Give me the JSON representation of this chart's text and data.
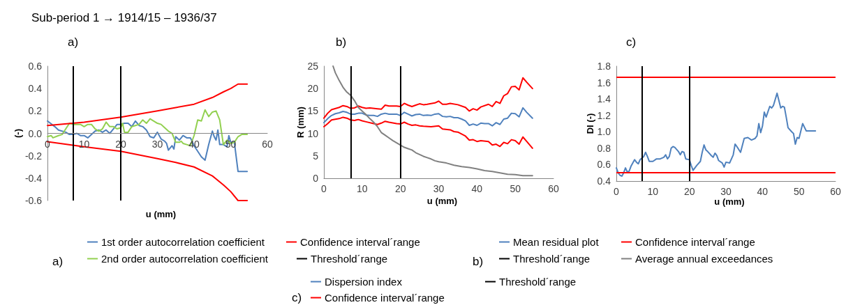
{
  "chart_data": [
    {
      "type": "line",
      "title": "Sub-period 1 → 1914/15 – 1936/37",
      "subtitle": "a)",
      "xlabel": "u (mm)",
      "ylabel": "(-)",
      "xlim": [
        0,
        60
      ],
      "xticks": [
        0,
        10,
        20,
        30,
        40,
        50,
        60
      ],
      "ylim": [
        -0.6,
        0.6
      ],
      "yticks": [
        -0.6,
        -0.4,
        -0.2,
        {
          "value": 0,
          "label": "0.0"
        },
        0.2,
        0.4,
        0.6
      ],
      "grid": false,
      "legend": "bottom",
      "marker": "none",
      "line_style": "solid",
      "series": [
        {
          "name": "1st order autocorrelation coefficient",
          "color": "#4f81bd",
          "x": [
            0,
            2,
            3,
            5,
            6,
            7,
            8,
            9,
            10,
            11,
            13,
            14,
            15,
            16,
            17,
            18,
            19,
            20,
            21,
            22,
            23,
            24,
            25,
            26,
            27,
            28,
            29,
            30,
            31,
            32,
            32.5,
            33,
            34,
            34.5,
            35,
            36,
            37,
            38,
            39,
            40,
            41,
            42,
            43,
            44,
            45,
            45.5,
            46,
            46.5,
            47,
            48,
            49,
            49.5,
            50,
            51,
            52,
            54.5
          ],
          "values": [
            0.11,
            0.06,
            0.03,
            0.01,
            -0.01,
            -0.01,
            0.0,
            -0.02,
            -0.02,
            -0.04,
            0.02,
            0.03,
            0.01,
            0.03,
            0.0,
            0.04,
            0.08,
            0.08,
            0.09,
            0.09,
            0.06,
            0.11,
            0.07,
            0.06,
            0.03,
            -0.03,
            -0.04,
            0.01,
            -0.05,
            -0.07,
            -0.09,
            -0.15,
            -0.11,
            -0.14,
            -0.03,
            -0.06,
            -0.02,
            -0.04,
            -0.04,
            -0.11,
            -0.16,
            -0.21,
            -0.24,
            -0.1,
            0.02,
            -0.03,
            -0.06,
            0.03,
            -0.1,
            -0.1,
            -0.12,
            -0.02,
            -0.08,
            -0.08,
            -0.34,
            -0.34
          ]
        },
        {
          "name": "2nd order autocorrelation coefficient",
          "color": "#92d050",
          "x": [
            0,
            1,
            1.5,
            3,
            4,
            5,
            6,
            7,
            9,
            10,
            11,
            12,
            13,
            14,
            15,
            16,
            17,
            18,
            19,
            20,
            20.5,
            21,
            22,
            23,
            24,
            25,
            26,
            27,
            28,
            29,
            30,
            31,
            32,
            33,
            34,
            35,
            36,
            36.5,
            37,
            38,
            39,
            40,
            41,
            42,
            43,
            44,
            45,
            46,
            47,
            48,
            49,
            50,
            51,
            52,
            53,
            54.5
          ],
          "values": [
            -0.03,
            -0.02,
            -0.04,
            -0.02,
            -0.01,
            0.04,
            0.09,
            0.08,
            0.08,
            0.06,
            0.08,
            0.08,
            0.04,
            0.02,
            0.04,
            0.1,
            0.06,
            0.06,
            0.04,
            0.05,
            0.09,
            0.01,
            0.01,
            0.06,
            0.07,
            0.08,
            0.12,
            0.09,
            0.13,
            0.11,
            0.09,
            0.08,
            0.05,
            0.02,
            0.0,
            -0.08,
            -0.08,
            -0.07,
            -0.09,
            -0.1,
            -0.11,
            -0.02,
            0.12,
            0.11,
            0.21,
            0.15,
            0.19,
            0.2,
            0.12,
            -0.1,
            -0.06,
            -0.09,
            -0.08,
            -0.03,
            -0.01,
            -0.01
          ]
        },
        {
          "name": "Confidence interval´range",
          "color": "#ff0000",
          "x": [
            0,
            10,
            20,
            30,
            35,
            40,
            45,
            48,
            50,
            52,
            54.5
          ],
          "values": [
            0.07,
            0.1,
            0.145,
            0.2,
            0.23,
            0.26,
            0.32,
            0.37,
            0.4,
            0.44,
            0.44
          ]
        },
        {
          "color": "#ff0000",
          "x": [
            0,
            10,
            20,
            30,
            35,
            40,
            45,
            48,
            50,
            52,
            54.5
          ],
          "values": [
            -0.075,
            -0.12,
            -0.16,
            -0.225,
            -0.26,
            -0.3,
            -0.38,
            -0.46,
            -0.52,
            -0.6,
            -0.6
          ]
        }
      ],
      "ref_lines": [
        {
          "axis": "x",
          "value": 7,
          "label": "Threshold´range",
          "color": "#000000"
        },
        {
          "axis": "x",
          "value": 20,
          "color": "#000000"
        }
      ]
    },
    {
      "type": "line",
      "title": "b)",
      "xlabel": "u (mm)",
      "ylabel": "R (mm)",
      "xlim": [
        0,
        60
      ],
      "xticks": [
        0,
        10,
        20,
        30,
        40,
        50,
        60
      ],
      "ylim": [
        0,
        25
      ],
      "yticks": [
        0,
        5,
        10,
        15,
        20,
        25
      ],
      "grid": false,
      "legend": "bottom",
      "marker": "none",
      "line_style": "solid",
      "series": [
        {
          "name": "Mean residual plot",
          "color": "#4f81bd",
          "x": [
            0,
            1,
            2,
            3,
            4,
            5,
            6,
            7,
            8,
            9,
            10,
            11,
            12,
            13,
            14,
            15,
            16,
            17,
            18,
            19,
            20,
            21,
            22,
            23,
            24,
            25,
            26,
            27,
            28,
            29,
            30,
            31,
            32,
            33,
            34,
            35,
            36,
            37,
            38,
            39,
            40,
            41,
            42,
            43,
            44,
            45,
            46,
            47,
            48,
            49,
            50,
            51,
            52,
            53,
            54.5
          ],
          "values": [
            12.4,
            13.3,
            14.0,
            14.4,
            14.6,
            14.9,
            14.7,
            14.3,
            14.3,
            14.5,
            14.5,
            14.1,
            14.0,
            14.0,
            13.8,
            14.3,
            14.5,
            14.3,
            14.3,
            14.3,
            14.0,
            14.7,
            14.3,
            13.9,
            14.2,
            14.3,
            14.0,
            14.1,
            14.0,
            14.3,
            14.4,
            13.8,
            13.7,
            13.8,
            13.5,
            13.5,
            13.2,
            12.8,
            11.8,
            12.1,
            11.8,
            12.3,
            12.2,
            12.2,
            11.7,
            12.4,
            12.0,
            13.2,
            13.4,
            14.5,
            14.4,
            13.7,
            15.7,
            14.7,
            13.4
          ]
        },
        {
          "name": "Confidence interval´range",
          "color": "#ff0000",
          "x": [
            0,
            1,
            2,
            4,
            5,
            6,
            7,
            8,
            9,
            10,
            11,
            12,
            14,
            15,
            16,
            17,
            19,
            20,
            21,
            22,
            23,
            24,
            25,
            26,
            27,
            29,
            30,
            31,
            32,
            33,
            35,
            37,
            38,
            39,
            40,
            41,
            43,
            44,
            45,
            46,
            47,
            48,
            49,
            50,
            51,
            52,
            53,
            54.5
          ],
          "values": [
            13.4,
            14.5,
            15.3,
            15.8,
            16.2,
            16.0,
            15.6,
            15.7,
            16.1,
            15.8,
            15.6,
            15.7,
            15.5,
            15.4,
            16.3,
            16.1,
            16.1,
            16.0,
            16.7,
            16.3,
            16.0,
            16.3,
            16.6,
            16.4,
            16.5,
            16.8,
            17.2,
            16.5,
            16.5,
            16.7,
            16.4,
            15.8,
            15.0,
            15.5,
            15.2,
            15.9,
            16.5,
            16.0,
            17.1,
            16.7,
            18.4,
            18.9,
            20.4,
            20.5,
            19.7,
            22.4,
            21.4,
            20.0
          ]
        },
        {
          "color": "#ff0000",
          "x": [
            0,
            1,
            2,
            4,
            5,
            6,
            7,
            8,
            9,
            10,
            11,
            13,
            14,
            15,
            16,
            17,
            19,
            20,
            21,
            22,
            23,
            24,
            25,
            26,
            28,
            30,
            31,
            33,
            34,
            35,
            37,
            38,
            39,
            40,
            41,
            43,
            44,
            45,
            46,
            47,
            48,
            49,
            50,
            51,
            52,
            53,
            54.5
          ],
          "values": [
            11.5,
            12.2,
            13.0,
            13.3,
            13.6,
            13.4,
            13.0,
            12.9,
            13.1,
            12.8,
            12.6,
            12.2,
            12.0,
            12.3,
            12.7,
            12.5,
            12.2,
            12.1,
            12.5,
            12.1,
            11.8,
            11.9,
            11.7,
            11.6,
            11.5,
            11.7,
            11.0,
            10.8,
            10.4,
            10.3,
            9.4,
            8.5,
            8.6,
            8.2,
            8.4,
            8.2,
            7.4,
            7.6,
            7.1,
            8.0,
            7.7,
            8.6,
            8.4,
            7.6,
            9.2,
            8.2,
            6.7
          ]
        },
        {
          "name": "Average annual exceedances",
          "color": "#808080",
          "x": [
            2.4,
            3,
            4,
            5,
            6,
            7,
            8,
            9,
            10,
            11,
            12,
            13,
            14,
            15,
            16,
            17,
            18,
            19,
            20,
            21,
            22,
            23,
            24,
            25,
            26,
            27,
            28,
            29,
            30,
            32,
            34,
            36,
            38,
            40,
            42,
            44,
            46,
            48,
            50,
            52,
            54.5
          ],
          "values": [
            25,
            23.5,
            21.8,
            20.3,
            19.2,
            18.5,
            17.3,
            15.8,
            15.0,
            14.2,
            13.3,
            12.5,
            11.5,
            10.2,
            9.6,
            9.0,
            8.4,
            7.9,
            7.4,
            6.9,
            6.6,
            6.3,
            5.7,
            5.3,
            4.9,
            4.6,
            4.3,
            3.9,
            3.7,
            3.4,
            2.9,
            2.6,
            2.4,
            2.1,
            1.7,
            1.5,
            1.2,
            0.9,
            0.8,
            0.6,
            0.6
          ]
        }
      ],
      "ref_lines": [
        {
          "axis": "x",
          "value": 7,
          "label": "Threshold´range",
          "color": "#000000"
        },
        {
          "axis": "x",
          "value": 20,
          "color": "#000000"
        }
      ]
    },
    {
      "type": "line",
      "title": "c)",
      "xlabel": "u (mm)",
      "ylabel": "DI (-)",
      "xlim": [
        0,
        60
      ],
      "xticks": [
        0,
        10,
        20,
        30,
        40,
        50,
        60
      ],
      "ylim": [
        0.4,
        1.8
      ],
      "yticks": [
        0.4,
        0.6,
        0.8,
        {
          "value": 1,
          "label": "1.0"
        },
        1.2,
        1.4,
        1.6,
        1.8
      ],
      "grid": false,
      "legend": "bottom",
      "marker": "none",
      "line_style": "solid",
      "series": [
        {
          "name": "Dispersion index",
          "color": "#4f81bd",
          "x": [
            0,
            0.5,
            1,
            1.5,
            2,
            2.5,
            3,
            3.5,
            4,
            5,
            5.5,
            6,
            6.5,
            7,
            7.5,
            8,
            8.5,
            9,
            10,
            11,
            12,
            13,
            13.5,
            14,
            14.5,
            15,
            15.5,
            16,
            17,
            17.5,
            18,
            18.5,
            19,
            20,
            20.5,
            21,
            22,
            23,
            23.5,
            24,
            24.5,
            25,
            26,
            26.5,
            27,
            27.5,
            28,
            29,
            29.5,
            30,
            31,
            32,
            32.5,
            33,
            34,
            35,
            36,
            37,
            38,
            38.5,
            39,
            39.5,
            40,
            40.5,
            41,
            42,
            42.5,
            43,
            44,
            45,
            45.5,
            46,
            46.5,
            47,
            48,
            48.5,
            49,
            49.5,
            50,
            51,
            52,
            54.5
          ],
          "values": [
            0.56,
            0.5,
            0.47,
            0.46,
            0.5,
            0.56,
            0.51,
            0.52,
            0.58,
            0.66,
            0.63,
            0.61,
            0.66,
            0.68,
            0.7,
            0.75,
            0.7,
            0.64,
            0.64,
            0.67,
            0.67,
            0.69,
            0.72,
            0.67,
            0.7,
            0.8,
            0.82,
            0.81,
            0.76,
            0.72,
            0.76,
            0.75,
            0.67,
            0.66,
            0.59,
            0.53,
            0.59,
            0.64,
            0.75,
            0.84,
            0.78,
            0.76,
            0.71,
            0.69,
            0.74,
            0.71,
            0.65,
            0.62,
            0.57,
            0.63,
            0.62,
            0.72,
            0.85,
            0.82,
            0.75,
            0.92,
            0.93,
            0.9,
            0.92,
            0.95,
            1.1,
            0.99,
            1.07,
            1.24,
            1.18,
            1.31,
            1.29,
            1.32,
            1.47,
            1.29,
            1.31,
            1.3,
            1.18,
            1.05,
            1.0,
            0.98,
            0.85,
            0.93,
            0.92,
            1.1,
            1.01,
            1.01
          ]
        }
      ],
      "ref_lines": [
        {
          "axis": "y",
          "value": 0.5,
          "label": "Confidence interval´range",
          "color": "#ff0000"
        },
        {
          "axis": "y",
          "value": 1.67,
          "color": "#ff0000"
        },
        {
          "axis": "x",
          "value": 7,
          "label": "Threshold´range",
          "color": "#000000"
        },
        {
          "axis": "x",
          "value": 20,
          "color": "#000000"
        }
      ]
    }
  ]
}
